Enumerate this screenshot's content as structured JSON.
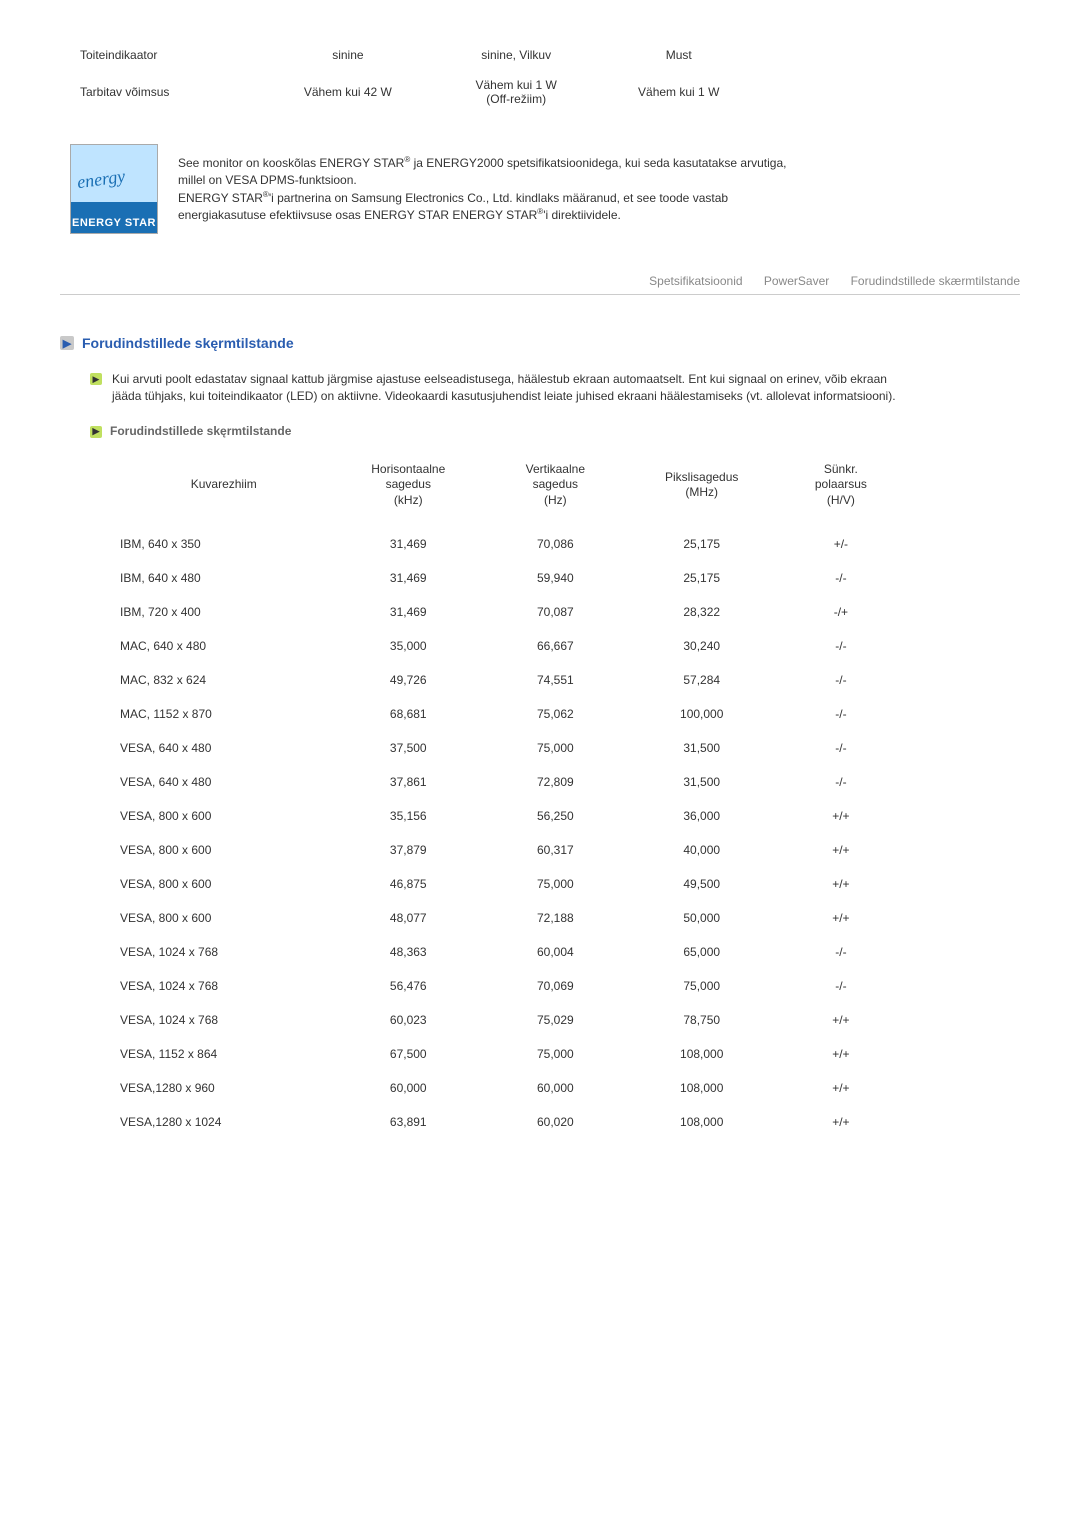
{
  "topTable": {
    "rows": [
      {
        "label": "Toiteindikaator",
        "c1": "sinine",
        "c2": "sinine, Vilkuv",
        "c3": "Must"
      },
      {
        "label": "Tarbitav võimsus",
        "c1": "Vähem kui 42 W",
        "c2": "Vähem kui 1 W\n(Off-režiim)",
        "c3": "Vähem kui 1 W"
      }
    ]
  },
  "energy": {
    "logo_script": "energy",
    "logo_band": "ENERGY STAR",
    "line1a": "See monitor on kooskõlas ENERGY STAR",
    "line1b": " ja ENERGY2000 spetsifikatsioonidega, kui seda kasutatakse arvutiga, millel on VESA DPMS-funktsioon.",
    "line2a": "ENERGY STAR",
    "line2b": "'i partnerina on Samsung Electronics Co., Ltd. kindlaks määranud, et see toode vastab energiakasutuse efektiivsuse osas ENERGY STAR",
    "line2c": "'i direktiividele."
  },
  "tabs": {
    "t1": "Spetsifikatsioonid",
    "t2": "PowerSaver",
    "t3": "Forudindstillede skærmtilstande"
  },
  "section": {
    "title": "Forudindstillede skęrmtilstande",
    "para": "Kui arvuti poolt edastatav signaal kattub järgmise ajastuse eelseadistusega, häälestub ekraan automaatselt. Ent kui signaal on erinev, võib ekraan jääda tühjaks, kui toiteindikaator (LED) on aktiivne. Videokaardi kasutusjuhendist leiate juhised ekraani häälestamiseks (vt. allolevat informatsiooni).",
    "subhead": "Forudindstillede skęrmtilstande"
  },
  "timing": {
    "headers": {
      "mode": "Kuvarezhiim",
      "h": "Horisontaalne\nsagedus\n(kHz)",
      "v": "Vertikaalne\nsagedus\n(Hz)",
      "p": "Pikslisagedus\n(MHz)",
      "s": "Sünkr.\npolaarsus\n(H/V)"
    },
    "rows": [
      {
        "mode": "IBM, 640 x 350",
        "h": "31,469",
        "v": "70,086",
        "p": "25,175",
        "s": "+/-"
      },
      {
        "mode": "IBM, 640 x 480",
        "h": "31,469",
        "v": "59,940",
        "p": "25,175",
        "s": "-/-"
      },
      {
        "mode": "IBM, 720 x 400",
        "h": "31,469",
        "v": "70,087",
        "p": "28,322",
        "s": "-/+"
      },
      {
        "mode": "MAC, 640 x 480",
        "h": "35,000",
        "v": "66,667",
        "p": "30,240",
        "s": "-/-"
      },
      {
        "mode": "MAC, 832 x 624",
        "h": "49,726",
        "v": "74,551",
        "p": "57,284",
        "s": "-/-"
      },
      {
        "mode": "MAC, 1152 x 870",
        "h": "68,681",
        "v": "75,062",
        "p": "100,000",
        "s": "-/-"
      },
      {
        "mode": "VESA, 640 x 480",
        "h": "37,500",
        "v": "75,000",
        "p": "31,500",
        "s": "-/-"
      },
      {
        "mode": "VESA, 640 x 480",
        "h": "37,861",
        "v": "72,809",
        "p": "31,500",
        "s": "-/-"
      },
      {
        "mode": "VESA, 800 x 600",
        "h": "35,156",
        "v": "56,250",
        "p": "36,000",
        "s": "+/+"
      },
      {
        "mode": "VESA, 800 x 600",
        "h": "37,879",
        "v": "60,317",
        "p": "40,000",
        "s": "+/+"
      },
      {
        "mode": "VESA, 800 x 600",
        "h": "46,875",
        "v": "75,000",
        "p": "49,500",
        "s": "+/+"
      },
      {
        "mode": "VESA, 800 x 600",
        "h": "48,077",
        "v": "72,188",
        "p": "50,000",
        "s": "+/+"
      },
      {
        "mode": "VESA, 1024 x 768",
        "h": "48,363",
        "v": "60,004",
        "p": "65,000",
        "s": "-/-"
      },
      {
        "mode": "VESA, 1024 x 768",
        "h": "56,476",
        "v": "70,069",
        "p": "75,000",
        "s": "-/-"
      },
      {
        "mode": "VESA, 1024 x 768",
        "h": "60,023",
        "v": "75,029",
        "p": "78,750",
        "s": "+/+"
      },
      {
        "mode": "VESA, 1152 x 864",
        "h": "67,500",
        "v": "75,000",
        "p": "108,000",
        "s": "+/+"
      },
      {
        "mode": "VESA,1280 x 960",
        "h": "60,000",
        "v": "60,000",
        "p": "108,000",
        "s": "+/+"
      },
      {
        "mode": "VESA,1280 x 1024",
        "h": "63,891",
        "v": "60,020",
        "p": "108,000",
        "s": "+/+"
      }
    ]
  }
}
